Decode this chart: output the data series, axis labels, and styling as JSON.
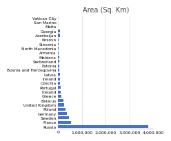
{
  "title": "Area (Sq. Km)",
  "categories": [
    "Vatican City",
    "San Marino",
    "Malta",
    "Georgia",
    "Azerbaijan",
    "Kosovo",
    "Slovenia",
    "North Macedonia",
    "Armenia",
    "Moldova",
    "Switzerland",
    "Estonia",
    "Bosnia and Herzegovina",
    "Latvia",
    "Ireland",
    "Czechia",
    "Portugal",
    "Iceland",
    "Greece",
    "Belarus",
    "United Kingdom",
    "Poland",
    "Germany",
    "Sweden",
    "France",
    "Russia"
  ],
  "values": [
    0.44,
    61,
    316,
    69700,
    86600,
    10908,
    20273,
    25713,
    29743,
    33846,
    41285,
    45228,
    51209,
    64589,
    70273,
    78867,
    92212,
    103000,
    131957,
    207600,
    243610,
    312679,
    357114,
    450295,
    551695,
    3796742
  ],
  "bar_color": "#4472C4",
  "xlim": [
    0,
    4000000
  ],
  "x_ticks": [
    0,
    1000000,
    2000000,
    3000000,
    4000000
  ],
  "x_tick_labels": [
    "0",
    "1,000,000",
    "2,000,000",
    "3,000,000",
    "4,000,000"
  ],
  "background_color": "#ffffff",
  "grid_color": "#d9d9d9",
  "title_fontsize": 7,
  "label_fontsize": 4.2,
  "tick_fontsize": 4.5
}
